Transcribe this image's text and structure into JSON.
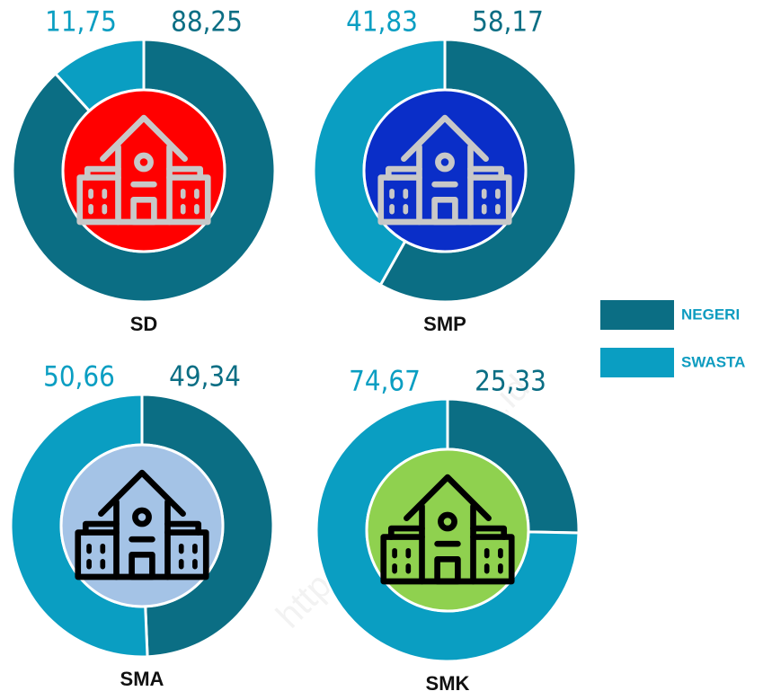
{
  "chart_data": [
    {
      "type": "donut",
      "title": "SD",
      "values": [
        88.25,
        11.75
      ],
      "value_labels": [
        "88,25",
        "11,75"
      ],
      "center_color": "#ff0000",
      "icon_color": "#c8c8c8"
    },
    {
      "type": "donut",
      "title": "SMP",
      "values": [
        58.17,
        41.83
      ],
      "value_labels": [
        "58,17",
        "41,83"
      ],
      "center_color": "#0a2ec8",
      "icon_color": "#c8c8c8"
    },
    {
      "type": "donut",
      "title": "SMA",
      "values": [
        49.34,
        50.66
      ],
      "value_labels": [
        "49,34",
        "50,66"
      ],
      "center_color": "#a4c3e6",
      "icon_color": "#000000"
    },
    {
      "type": "donut",
      "title": "SMK",
      "values": [
        25.33,
        74.67
      ],
      "value_labels": [
        "25,33",
        "74,67"
      ],
      "center_color": "#8fd14f",
      "icon_color": "#000000"
    }
  ],
  "legend": {
    "series": [
      {
        "name": "NEGERI",
        "color": "#0b6e84"
      },
      {
        "name": "SWASTA",
        "color": "#0a9ec2"
      }
    ]
  },
  "watermark": "https://www.bps.go.id"
}
